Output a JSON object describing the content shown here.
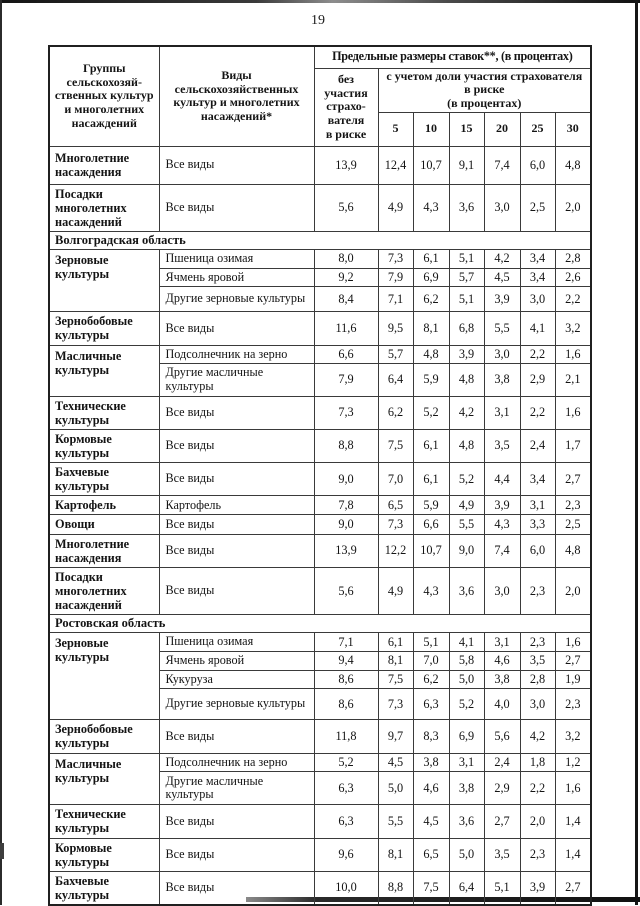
{
  "page": {
    "number": "19"
  },
  "table": {
    "header": {
      "col_groups": "Группы\nсельскохозяй-\nственных культур\nи многолетних\nнасаждений",
      "col_kinds": "Виды\nсельскохозяйственных\nкультур и многолетних\nнасаждений*",
      "rates_title": "Предельные размеры ставок**,  (в процентах)",
      "without_participation": "без\nучастия\nстрахо-\nвателя\nв риске",
      "with_participation": "с учетом доли участия страхователя\nв риске\n(в процентах)",
      "percent_cols": [
        "5",
        "10",
        "15",
        "20",
        "25",
        "30"
      ]
    },
    "sections": [
      {
        "region": null,
        "groups": [
          {
            "name": "Многолетние насаждения",
            "rows": [
              {
                "kind": "Все виды",
                "values": [
                  "13,9",
                  "12,4",
                  "10,7",
                  "9,1",
                  "7,4",
                  "6,0",
                  "4,8"
                ]
              }
            ]
          },
          {
            "name": "Посадки многолетних насаждений",
            "rows": [
              {
                "kind": "Все виды",
                "values": [
                  "5,6",
                  "4,9",
                  "4,3",
                  "3,6",
                  "3,0",
                  "2,5",
                  "2,0"
                ]
              }
            ]
          }
        ]
      },
      {
        "region": "Волгоградская область",
        "groups": [
          {
            "name": "Зерновые культуры",
            "rows": [
              {
                "kind": "Пшеница озимая",
                "values": [
                  "8,0",
                  "7,3",
                  "6,1",
                  "5,1",
                  "4,2",
                  "3,4",
                  "2,8"
                ]
              },
              {
                "kind": "Ячмень яровой",
                "values": [
                  "9,2",
                  "7,9",
                  "6,9",
                  "5,7",
                  "4,5",
                  "3,4",
                  "2,6"
                ]
              },
              {
                "kind": "Другие зерновые культуры",
                "values": [
                  "8,4",
                  "7,1",
                  "6,2",
                  "5,1",
                  "3,9",
                  "3,0",
                  "2,2"
                ]
              }
            ]
          },
          {
            "name": "Зернобобовые культуры",
            "rows": [
              {
                "kind": "Все виды",
                "values": [
                  "11,6",
                  "9,5",
                  "8,1",
                  "6,8",
                  "5,5",
                  "4,1",
                  "3,2"
                ]
              }
            ]
          },
          {
            "name": "Масличные культуры",
            "rows": [
              {
                "kind": "Подсолнечник на зерно",
                "values": [
                  "6,6",
                  "5,7",
                  "4,8",
                  "3,9",
                  "3,0",
                  "2,2",
                  "1,6"
                ]
              },
              {
                "kind": "Другие масличные культуры",
                "values": [
                  "7,9",
                  "6,4",
                  "5,9",
                  "4,8",
                  "3,8",
                  "2,9",
                  "2,1"
                ]
              }
            ]
          },
          {
            "name": "Технические культуры",
            "rows": [
              {
                "kind": "Все виды",
                "values": [
                  "7,3",
                  "6,2",
                  "5,2",
                  "4,2",
                  "3,1",
                  "2,2",
                  "1,6"
                ]
              }
            ]
          },
          {
            "name": "Кормовые культуры",
            "rows": [
              {
                "kind": "Все виды",
                "values": [
                  "8,8",
                  "7,5",
                  "6,1",
                  "4,8",
                  "3,5",
                  "2,4",
                  "1,7"
                ]
              }
            ]
          },
          {
            "name": "Бахчевые культуры",
            "rows": [
              {
                "kind": "Все виды",
                "values": [
                  "9,0",
                  "7,0",
                  "6,1",
                  "5,2",
                  "4,4",
                  "3,4",
                  "2,7"
                ]
              }
            ]
          },
          {
            "name": "Картофель",
            "rows": [
              {
                "kind": "Картофель",
                "values": [
                  "7,8",
                  "6,5",
                  "5,9",
                  "4,9",
                  "3,9",
                  "3,1",
                  "2,3"
                ]
              }
            ]
          },
          {
            "name": "Овощи",
            "rows": [
              {
                "kind": "Все виды",
                "values": [
                  "9,0",
                  "7,3",
                  "6,6",
                  "5,5",
                  "4,3",
                  "3,3",
                  "2,5"
                ]
              }
            ]
          },
          {
            "name": "Многолетние насаждения",
            "rows": [
              {
                "kind": "Все виды",
                "values": [
                  "13,9",
                  "12,2",
                  "10,7",
                  "9,0",
                  "7,4",
                  "6,0",
                  "4,8"
                ]
              }
            ]
          },
          {
            "name": "Посадки многолетних насаждений",
            "rows": [
              {
                "kind": "Все виды",
                "values": [
                  "5,6",
                  "4,9",
                  "4,3",
                  "3,6",
                  "3,0",
                  "2,3",
                  "2,0"
                ]
              }
            ]
          }
        ]
      },
      {
        "region": "Ростовская область",
        "groups": [
          {
            "name": "Зерновые культуры",
            "rows": [
              {
                "kind": "Пшеница озимая",
                "values": [
                  "7,1",
                  "6,1",
                  "5,1",
                  "4,1",
                  "3,1",
                  "2,3",
                  "1,6"
                ]
              },
              {
                "kind": "Ячмень яровой",
                "values": [
                  "9,4",
                  "8,1",
                  "7,0",
                  "5,8",
                  "4,6",
                  "3,5",
                  "2,7"
                ]
              },
              {
                "kind": "Кукуруза",
                "values": [
                  "8,6",
                  "7,5",
                  "6,2",
                  "5,0",
                  "3,8",
                  "2,8",
                  "1,9"
                ]
              },
              {
                "kind": "Другие зерновые культуры",
                "values": [
                  "8,6",
                  "7,3",
                  "6,3",
                  "5,2",
                  "4,0",
                  "3,0",
                  "2,3"
                ]
              }
            ]
          },
          {
            "name": "Зернобобовые культуры",
            "rows": [
              {
                "kind": "Все виды",
                "values": [
                  "11,8",
                  "9,7",
                  "8,3",
                  "6,9",
                  "5,6",
                  "4,2",
                  "3,2"
                ]
              }
            ]
          },
          {
            "name": "Масличные культуры",
            "rows": [
              {
                "kind": "Подсолнечник на зерно",
                "values": [
                  "5,2",
                  "4,5",
                  "3,8",
                  "3,1",
                  "2,4",
                  "1,8",
                  "1,2"
                ]
              },
              {
                "kind": "Другие масличные культуры",
                "values": [
                  "6,3",
                  "5,0",
                  "4,6",
                  "3,8",
                  "2,9",
                  "2,2",
                  "1,6"
                ]
              }
            ]
          },
          {
            "name": "Технические культуры",
            "rows": [
              {
                "kind": "Все виды",
                "values": [
                  "6,3",
                  "5,5",
                  "4,5",
                  "3,6",
                  "2,7",
                  "2,0",
                  "1,4"
                ]
              }
            ]
          },
          {
            "name": "Кормовые культуры",
            "rows": [
              {
                "kind": "Все виды",
                "values": [
                  "9,6",
                  "8,1",
                  "6,5",
                  "5,0",
                  "3,5",
                  "2,3",
                  "1,4"
                ]
              }
            ]
          },
          {
            "name": "Бахчевые культуры",
            "rows": [
              {
                "kind": "Все виды",
                "values": [
                  "10,0",
                  "8,8",
                  "7,5",
                  "6,4",
                  "5,1",
                  "3,9",
                  "2,7"
                ]
              }
            ]
          }
        ]
      }
    ]
  }
}
